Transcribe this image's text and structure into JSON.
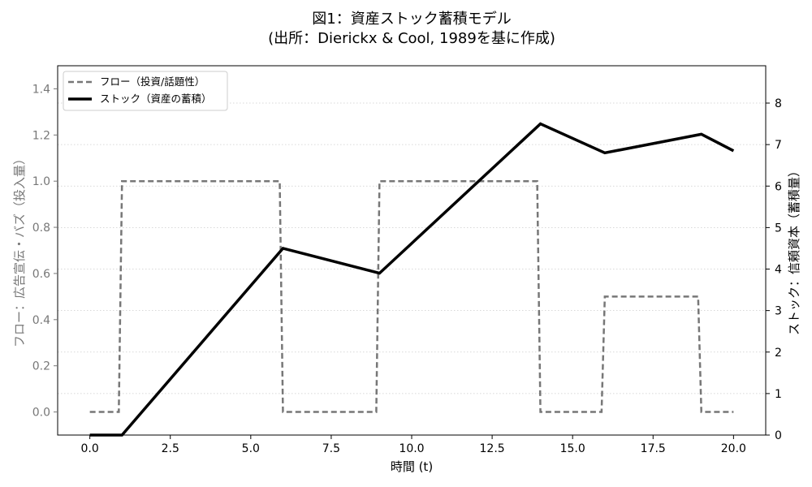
{
  "chart_data": {
    "type": "line",
    "title_line1": "図1：資産ストック蓄積モデル",
    "title_line2": "(出所：Dierickx & Cool, 1989を基に作成)",
    "xlabel": "時間 (t)",
    "ylabel_left": "フロー：広告宣伝・バズ（投入量）",
    "ylabel_right": "ストック：信頼資本（蓄積量）",
    "xlim": [
      -1,
      21
    ],
    "ylim_left": [
      -0.1,
      1.5
    ],
    "ylim_right": [
      0,
      8.9
    ],
    "x_ticks": [
      0.0,
      2.5,
      5.0,
      7.5,
      10.0,
      12.5,
      15.0,
      17.5,
      20.0
    ],
    "x_tick_labels": [
      "0.0",
      "2.5",
      "5.0",
      "7.5",
      "10.0",
      "12.5",
      "15.0",
      "17.5",
      "20.0"
    ],
    "y_left_ticks": [
      0.0,
      0.2,
      0.4,
      0.6,
      0.8,
      1.0,
      1.2,
      1.4
    ],
    "y_left_tick_labels": [
      "0.0",
      "0.2",
      "0.4",
      "0.6",
      "0.8",
      "1.0",
      "1.2",
      "1.4"
    ],
    "y_right_ticks": [
      0,
      1,
      2,
      3,
      4,
      5,
      6,
      7,
      8
    ],
    "y_right_tick_labels": [
      "0",
      "1",
      "2",
      "3",
      "4",
      "5",
      "6",
      "7",
      "8"
    ],
    "grid": "horizontal-dotted",
    "legend_position": "top-left",
    "series": [
      {
        "name": "フロー（投資/話題性）",
        "axis": "left",
        "style": "dashed",
        "color": "#777777",
        "x": [
          0,
          0.9,
          1,
          5.9,
          6,
          8.9,
          9,
          13.9,
          14,
          15.9,
          16,
          18.9,
          19,
          20
        ],
        "y": [
          0,
          0,
          1,
          1,
          0,
          0,
          1,
          1,
          0,
          0,
          0.5,
          0.5,
          0,
          0
        ]
      },
      {
        "name": "ストック（資産の蓄積）",
        "axis": "right",
        "style": "solid",
        "color": "#000000",
        "x": [
          0,
          1,
          6,
          9,
          14,
          16,
          19,
          20
        ],
        "y": [
          0,
          0,
          4.5,
          3.9,
          7.5,
          6.8,
          7.25,
          6.85
        ]
      }
    ]
  }
}
